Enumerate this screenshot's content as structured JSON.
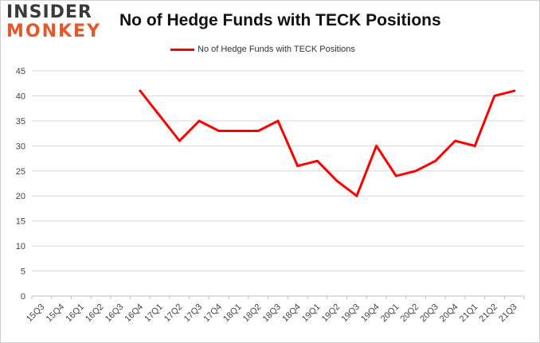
{
  "logo": {
    "line1": "INSIDER",
    "line2": "MONKEY"
  },
  "chart_data": {
    "type": "line",
    "title": "No of Hedge Funds with TECK Positions",
    "xlabel": "",
    "ylabel": "",
    "categories": [
      "15Q3",
      "15Q4",
      "16Q1",
      "16Q2",
      "16Q3",
      "16Q4",
      "17Q1",
      "17Q2",
      "17Q3",
      "17Q4",
      "18Q1",
      "18Q2",
      "18Q3",
      "18Q4",
      "19Q1",
      "19Q2",
      "19Q3",
      "19Q4",
      "20Q1",
      "20Q2",
      "20Q3",
      "20Q4",
      "21Q1",
      "21Q2",
      "21Q3"
    ],
    "series": [
      {
        "name": "No of Hedge Funds with TECK Positions",
        "color": "#ff0000",
        "values": [
          null,
          null,
          null,
          null,
          null,
          41,
          36,
          31,
          35,
          33,
          33,
          33,
          35,
          26,
          27,
          23,
          20,
          30,
          24,
          25,
          27,
          31,
          30,
          40,
          41
        ]
      }
    ],
    "ylim": [
      0,
      45
    ],
    "yticks": [
      0,
      5,
      10,
      15,
      20,
      25,
      30,
      35,
      40,
      45
    ],
    "grid": true,
    "legend_position": "top-center"
  }
}
